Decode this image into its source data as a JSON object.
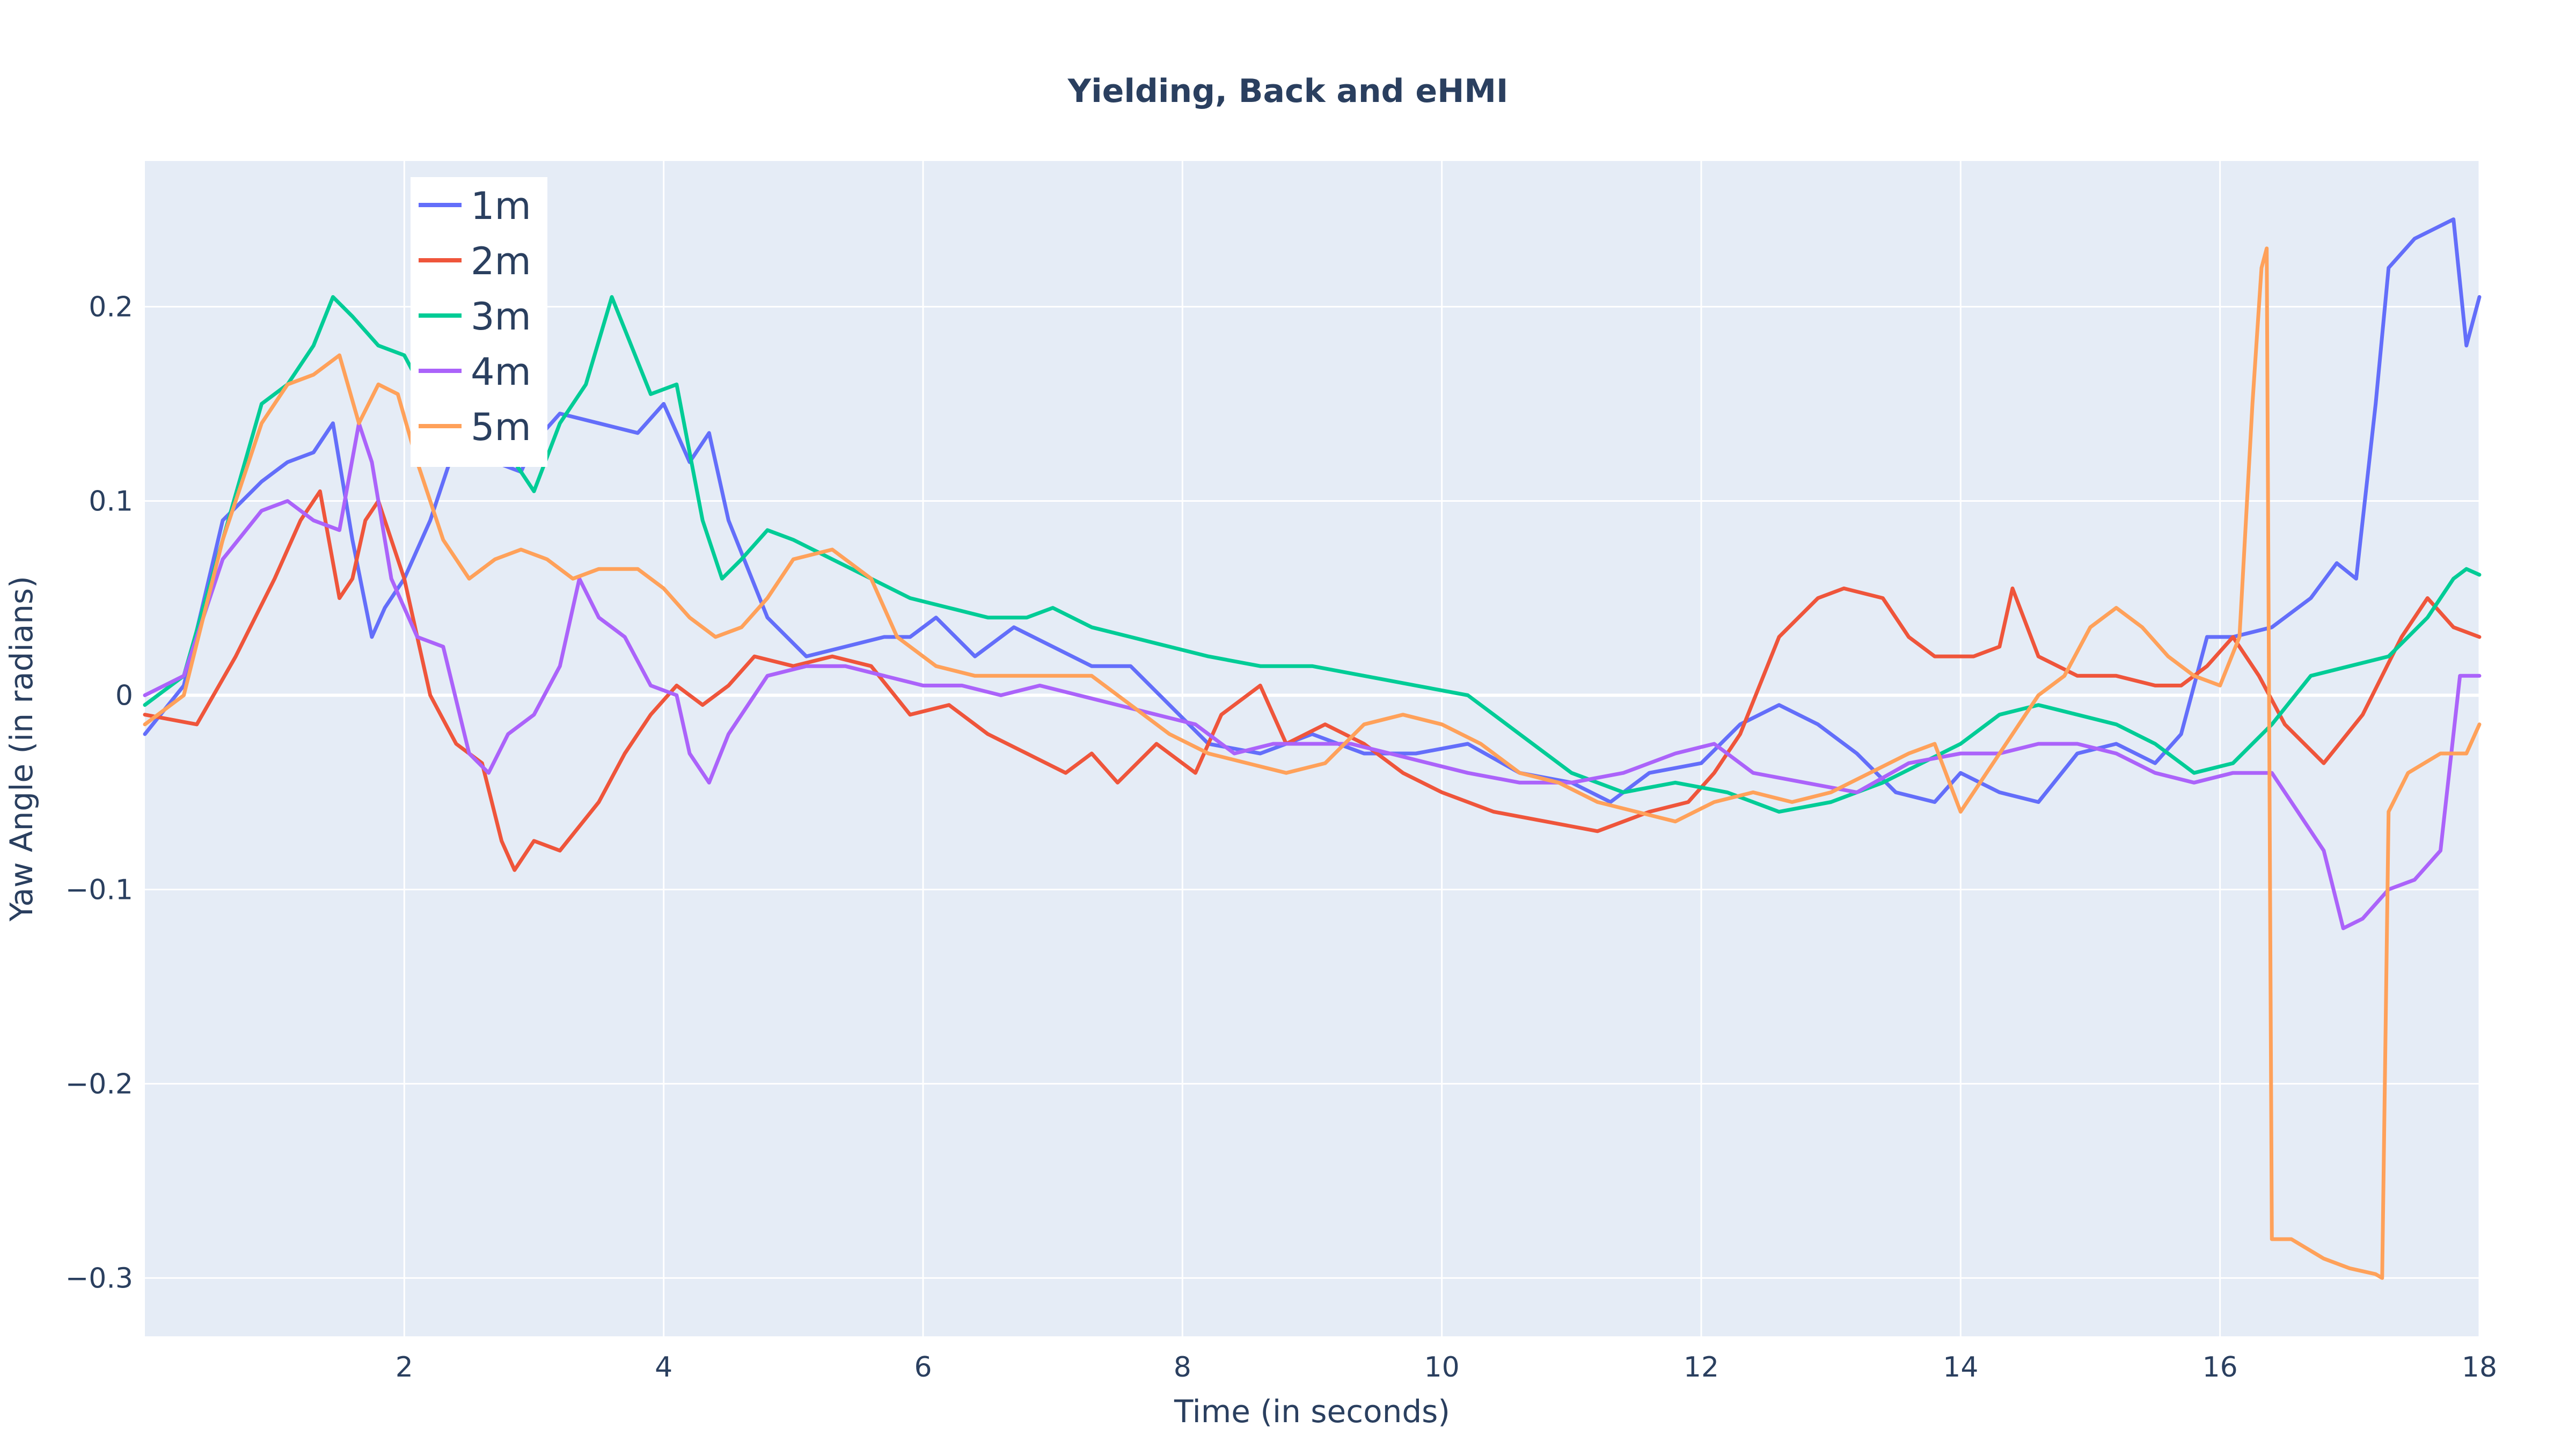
{
  "chart_data": {
    "type": "line",
    "title": "Yielding, Back and eHMI",
    "xlabel": "Time (in seconds)",
    "ylabel": "Yaw Angle (in radians)",
    "xlim": [
      0,
      18
    ],
    "ylim": [
      -0.33,
      0.275
    ],
    "xticks": [
      2,
      4,
      6,
      8,
      10,
      12,
      14,
      16,
      18
    ],
    "xtick_labels": [
      "2",
      "4",
      "6",
      "8",
      "10",
      "12",
      "14",
      "16",
      "18"
    ],
    "yticks": [
      -0.3,
      -0.2,
      -0.1,
      0,
      0.1,
      0.2
    ],
    "ytick_labels": [
      "−0.3",
      "−0.2",
      "−0.1",
      "0",
      "0.1",
      "0.2"
    ],
    "grid": true,
    "legend_position": "top-left",
    "plot_background": "#e5ecf6",
    "series": [
      {
        "name": "1m",
        "color": "#636efa",
        "x": [
          0,
          0.3,
          0.6,
          0.9,
          1.1,
          1.3,
          1.45,
          1.6,
          1.75,
          1.85,
          2.0,
          2.2,
          2.4,
          2.55,
          2.7,
          2.9,
          3.0,
          3.2,
          3.5,
          3.8,
          4.0,
          4.2,
          4.35,
          4.5,
          4.8,
          5.1,
          5.4,
          5.7,
          5.9,
          6.1,
          6.4,
          6.7,
          7.0,
          7.3,
          7.6,
          7.9,
          8.2,
          8.6,
          9.0,
          9.4,
          9.8,
          10.2,
          10.6,
          11.0,
          11.3,
          11.6,
          12.0,
          12.3,
          12.6,
          12.9,
          13.2,
          13.5,
          13.8,
          14.0,
          14.3,
          14.6,
          14.9,
          15.2,
          15.5,
          15.7,
          15.9,
          16.1,
          16.4,
          16.7,
          16.9,
          17.05,
          17.2,
          17.3,
          17.5,
          17.65,
          17.8,
          17.9,
          18.0
        ],
        "y": [
          -0.02,
          0.005,
          0.09,
          0.11,
          0.12,
          0.125,
          0.14,
          0.08,
          0.03,
          0.045,
          0.06,
          0.09,
          0.13,
          0.145,
          0.12,
          0.115,
          0.13,
          0.145,
          0.14,
          0.135,
          0.15,
          0.12,
          0.135,
          0.09,
          0.04,
          0.02,
          0.025,
          0.03,
          0.03,
          0.04,
          0.02,
          0.035,
          0.025,
          0.015,
          0.015,
          -0.005,
          -0.025,
          -0.03,
          -0.02,
          -0.03,
          -0.03,
          -0.025,
          -0.04,
          -0.045,
          -0.055,
          -0.04,
          -0.035,
          -0.015,
          -0.005,
          -0.015,
          -0.03,
          -0.05,
          -0.055,
          -0.04,
          -0.05,
          -0.055,
          -0.03,
          -0.025,
          -0.035,
          -0.02,
          0.03,
          0.03,
          0.035,
          0.05,
          0.068,
          0.06,
          0.15,
          0.22,
          0.235,
          0.24,
          0.245,
          0.18,
          0.205
        ]
      },
      {
        "name": "2m",
        "color": "#ef553b",
        "x": [
          0,
          0.4,
          0.7,
          1.0,
          1.2,
          1.35,
          1.5,
          1.6,
          1.7,
          1.8,
          2.0,
          2.2,
          2.4,
          2.6,
          2.75,
          2.85,
          3.0,
          3.2,
          3.5,
          3.7,
          3.9,
          4.1,
          4.3,
          4.5,
          4.7,
          5.0,
          5.3,
          5.6,
          5.9,
          6.2,
          6.5,
          6.8,
          7.1,
          7.3,
          7.5,
          7.8,
          8.1,
          8.3,
          8.6,
          8.8,
          9.1,
          9.4,
          9.7,
          10.0,
          10.4,
          10.8,
          11.2,
          11.6,
          11.9,
          12.1,
          12.3,
          12.6,
          12.9,
          13.1,
          13.4,
          13.6,
          13.8,
          14.1,
          14.3,
          14.4,
          14.6,
          14.9,
          15.2,
          15.5,
          15.7,
          15.9,
          16.1,
          16.3,
          16.5,
          16.8,
          17.1,
          17.4,
          17.6,
          17.8,
          18.0
        ],
        "y": [
          -0.01,
          -0.015,
          0.02,
          0.06,
          0.09,
          0.105,
          0.05,
          0.06,
          0.09,
          0.1,
          0.06,
          0.0,
          -0.025,
          -0.035,
          -0.075,
          -0.09,
          -0.075,
          -0.08,
          -0.055,
          -0.03,
          -0.01,
          0.005,
          -0.005,
          0.005,
          0.02,
          0.015,
          0.02,
          0.015,
          -0.01,
          -0.005,
          -0.02,
          -0.03,
          -0.04,
          -0.03,
          -0.045,
          -0.025,
          -0.04,
          -0.01,
          0.005,
          -0.025,
          -0.015,
          -0.025,
          -0.04,
          -0.05,
          -0.06,
          -0.065,
          -0.07,
          -0.06,
          -0.055,
          -0.04,
          -0.02,
          0.03,
          0.05,
          0.055,
          0.05,
          0.03,
          0.02,
          0.02,
          0.025,
          0.055,
          0.02,
          0.01,
          0.01,
          0.005,
          0.005,
          0.015,
          0.03,
          0.01,
          -0.015,
          -0.035,
          -0.01,
          0.03,
          0.05,
          0.035,
          0.03
        ]
      },
      {
        "name": "3m",
        "color": "#00cc96",
        "x": [
          0,
          0.3,
          0.6,
          0.9,
          1.1,
          1.3,
          1.45,
          1.6,
          1.8,
          2.0,
          2.2,
          2.5,
          2.8,
          3.0,
          3.2,
          3.4,
          3.6,
          3.75,
          3.9,
          4.1,
          4.3,
          4.45,
          4.6,
          4.8,
          5.0,
          5.3,
          5.6,
          5.9,
          6.2,
          6.5,
          6.8,
          7.0,
          7.3,
          7.6,
          7.9,
          8.2,
          8.6,
          9.0,
          9.4,
          9.8,
          10.2,
          10.6,
          11.0,
          11.4,
          11.8,
          12.2,
          12.6,
          13.0,
          13.4,
          13.7,
          14.0,
          14.3,
          14.6,
          14.9,
          15.2,
          15.5,
          15.8,
          16.1,
          16.4,
          16.7,
          17.0,
          17.3,
          17.6,
          17.8,
          17.9,
          18.0
        ],
        "y": [
          -0.005,
          0.01,
          0.08,
          0.15,
          0.16,
          0.18,
          0.205,
          0.195,
          0.18,
          0.175,
          0.15,
          0.13,
          0.125,
          0.105,
          0.14,
          0.16,
          0.205,
          0.18,
          0.155,
          0.16,
          0.09,
          0.06,
          0.07,
          0.085,
          0.08,
          0.07,
          0.06,
          0.05,
          0.045,
          0.04,
          0.04,
          0.045,
          0.035,
          0.03,
          0.025,
          0.02,
          0.015,
          0.015,
          0.01,
          0.005,
          0.0,
          -0.02,
          -0.04,
          -0.05,
          -0.045,
          -0.05,
          -0.06,
          -0.055,
          -0.045,
          -0.035,
          -0.025,
          -0.01,
          -0.005,
          -0.01,
          -0.015,
          -0.025,
          -0.04,
          -0.035,
          -0.015,
          0.01,
          0.015,
          0.02,
          0.04,
          0.06,
          0.065,
          0.062
        ]
      },
      {
        "name": "4m",
        "color": "#ab63fa",
        "x": [
          0,
          0.3,
          0.6,
          0.9,
          1.1,
          1.3,
          1.5,
          1.65,
          1.75,
          1.9,
          2.1,
          2.3,
          2.5,
          2.65,
          2.8,
          3.0,
          3.2,
          3.35,
          3.5,
          3.7,
          3.9,
          4.1,
          4.2,
          4.35,
          4.5,
          4.8,
          5.1,
          5.4,
          5.7,
          6.0,
          6.3,
          6.6,
          6.9,
          7.2,
          7.5,
          7.8,
          8.1,
          8.4,
          8.7,
          9.0,
          9.3,
          9.6,
          9.9,
          10.2,
          10.6,
          11.0,
          11.4,
          11.8,
          12.1,
          12.4,
          12.8,
          13.2,
          13.6,
          14.0,
          14.3,
          14.6,
          14.9,
          15.2,
          15.5,
          15.8,
          16.1,
          16.4,
          16.6,
          16.8,
          16.95,
          17.1,
          17.3,
          17.5,
          17.7,
          17.85,
          18.0
        ],
        "y": [
          0.0,
          0.01,
          0.07,
          0.095,
          0.1,
          0.09,
          0.085,
          0.14,
          0.12,
          0.06,
          0.03,
          0.025,
          -0.03,
          -0.04,
          -0.02,
          -0.01,
          0.015,
          0.06,
          0.04,
          0.03,
          0.005,
          0.0,
          -0.03,
          -0.045,
          -0.02,
          0.01,
          0.015,
          0.015,
          0.01,
          0.005,
          0.005,
          0.0,
          0.005,
          0.0,
          -0.005,
          -0.01,
          -0.015,
          -0.03,
          -0.025,
          -0.025,
          -0.025,
          -0.03,
          -0.035,
          -0.04,
          -0.045,
          -0.045,
          -0.04,
          -0.03,
          -0.025,
          -0.04,
          -0.045,
          -0.05,
          -0.035,
          -0.03,
          -0.03,
          -0.025,
          -0.025,
          -0.03,
          -0.04,
          -0.045,
          -0.04,
          -0.04,
          -0.06,
          -0.08,
          -0.12,
          -0.115,
          -0.1,
          -0.095,
          -0.08,
          0.01,
          0.01
        ]
      },
      {
        "name": "5m",
        "color": "#ffa15a",
        "x": [
          0,
          0.3,
          0.6,
          0.9,
          1.1,
          1.3,
          1.5,
          1.65,
          1.8,
          1.95,
          2.1,
          2.3,
          2.5,
          2.7,
          2.9,
          3.1,
          3.3,
          3.5,
          3.8,
          4.0,
          4.2,
          4.4,
          4.6,
          4.8,
          5.0,
          5.3,
          5.6,
          5.8,
          6.1,
          6.4,
          6.7,
          7.0,
          7.3,
          7.6,
          7.9,
          8.2,
          8.5,
          8.8,
          9.1,
          9.4,
          9.7,
          10.0,
          10.3,
          10.6,
          10.9,
          11.2,
          11.5,
          11.8,
          12.1,
          12.4,
          12.7,
          13.0,
          13.3,
          13.6,
          13.8,
          14.0,
          14.2,
          14.4,
          14.6,
          14.8,
          15.0,
          15.2,
          15.4,
          15.6,
          15.8,
          16.0,
          16.15,
          16.25,
          16.32,
          16.36,
          16.4,
          16.55,
          16.8,
          17.0,
          17.2,
          17.25,
          17.3,
          17.45,
          17.7,
          17.9,
          18.0
        ],
        "y": [
          -0.015,
          0.0,
          0.08,
          0.14,
          0.16,
          0.165,
          0.175,
          0.14,
          0.16,
          0.155,
          0.12,
          0.08,
          0.06,
          0.07,
          0.075,
          0.07,
          0.06,
          0.065,
          0.065,
          0.055,
          0.04,
          0.03,
          0.035,
          0.05,
          0.07,
          0.075,
          0.06,
          0.03,
          0.015,
          0.01,
          0.01,
          0.01,
          0.01,
          -0.005,
          -0.02,
          -0.03,
          -0.035,
          -0.04,
          -0.035,
          -0.015,
          -0.01,
          -0.015,
          -0.025,
          -0.04,
          -0.045,
          -0.055,
          -0.06,
          -0.065,
          -0.055,
          -0.05,
          -0.055,
          -0.05,
          -0.04,
          -0.03,
          -0.025,
          -0.06,
          -0.04,
          -0.02,
          0.0,
          0.01,
          0.035,
          0.045,
          0.035,
          0.02,
          0.01,
          0.005,
          0.03,
          0.15,
          0.22,
          0.23,
          -0.28,
          -0.28,
          -0.29,
          -0.295,
          -0.298,
          -0.3,
          -0.06,
          -0.04,
          -0.03,
          -0.03,
          -0.015
        ]
      }
    ]
  }
}
